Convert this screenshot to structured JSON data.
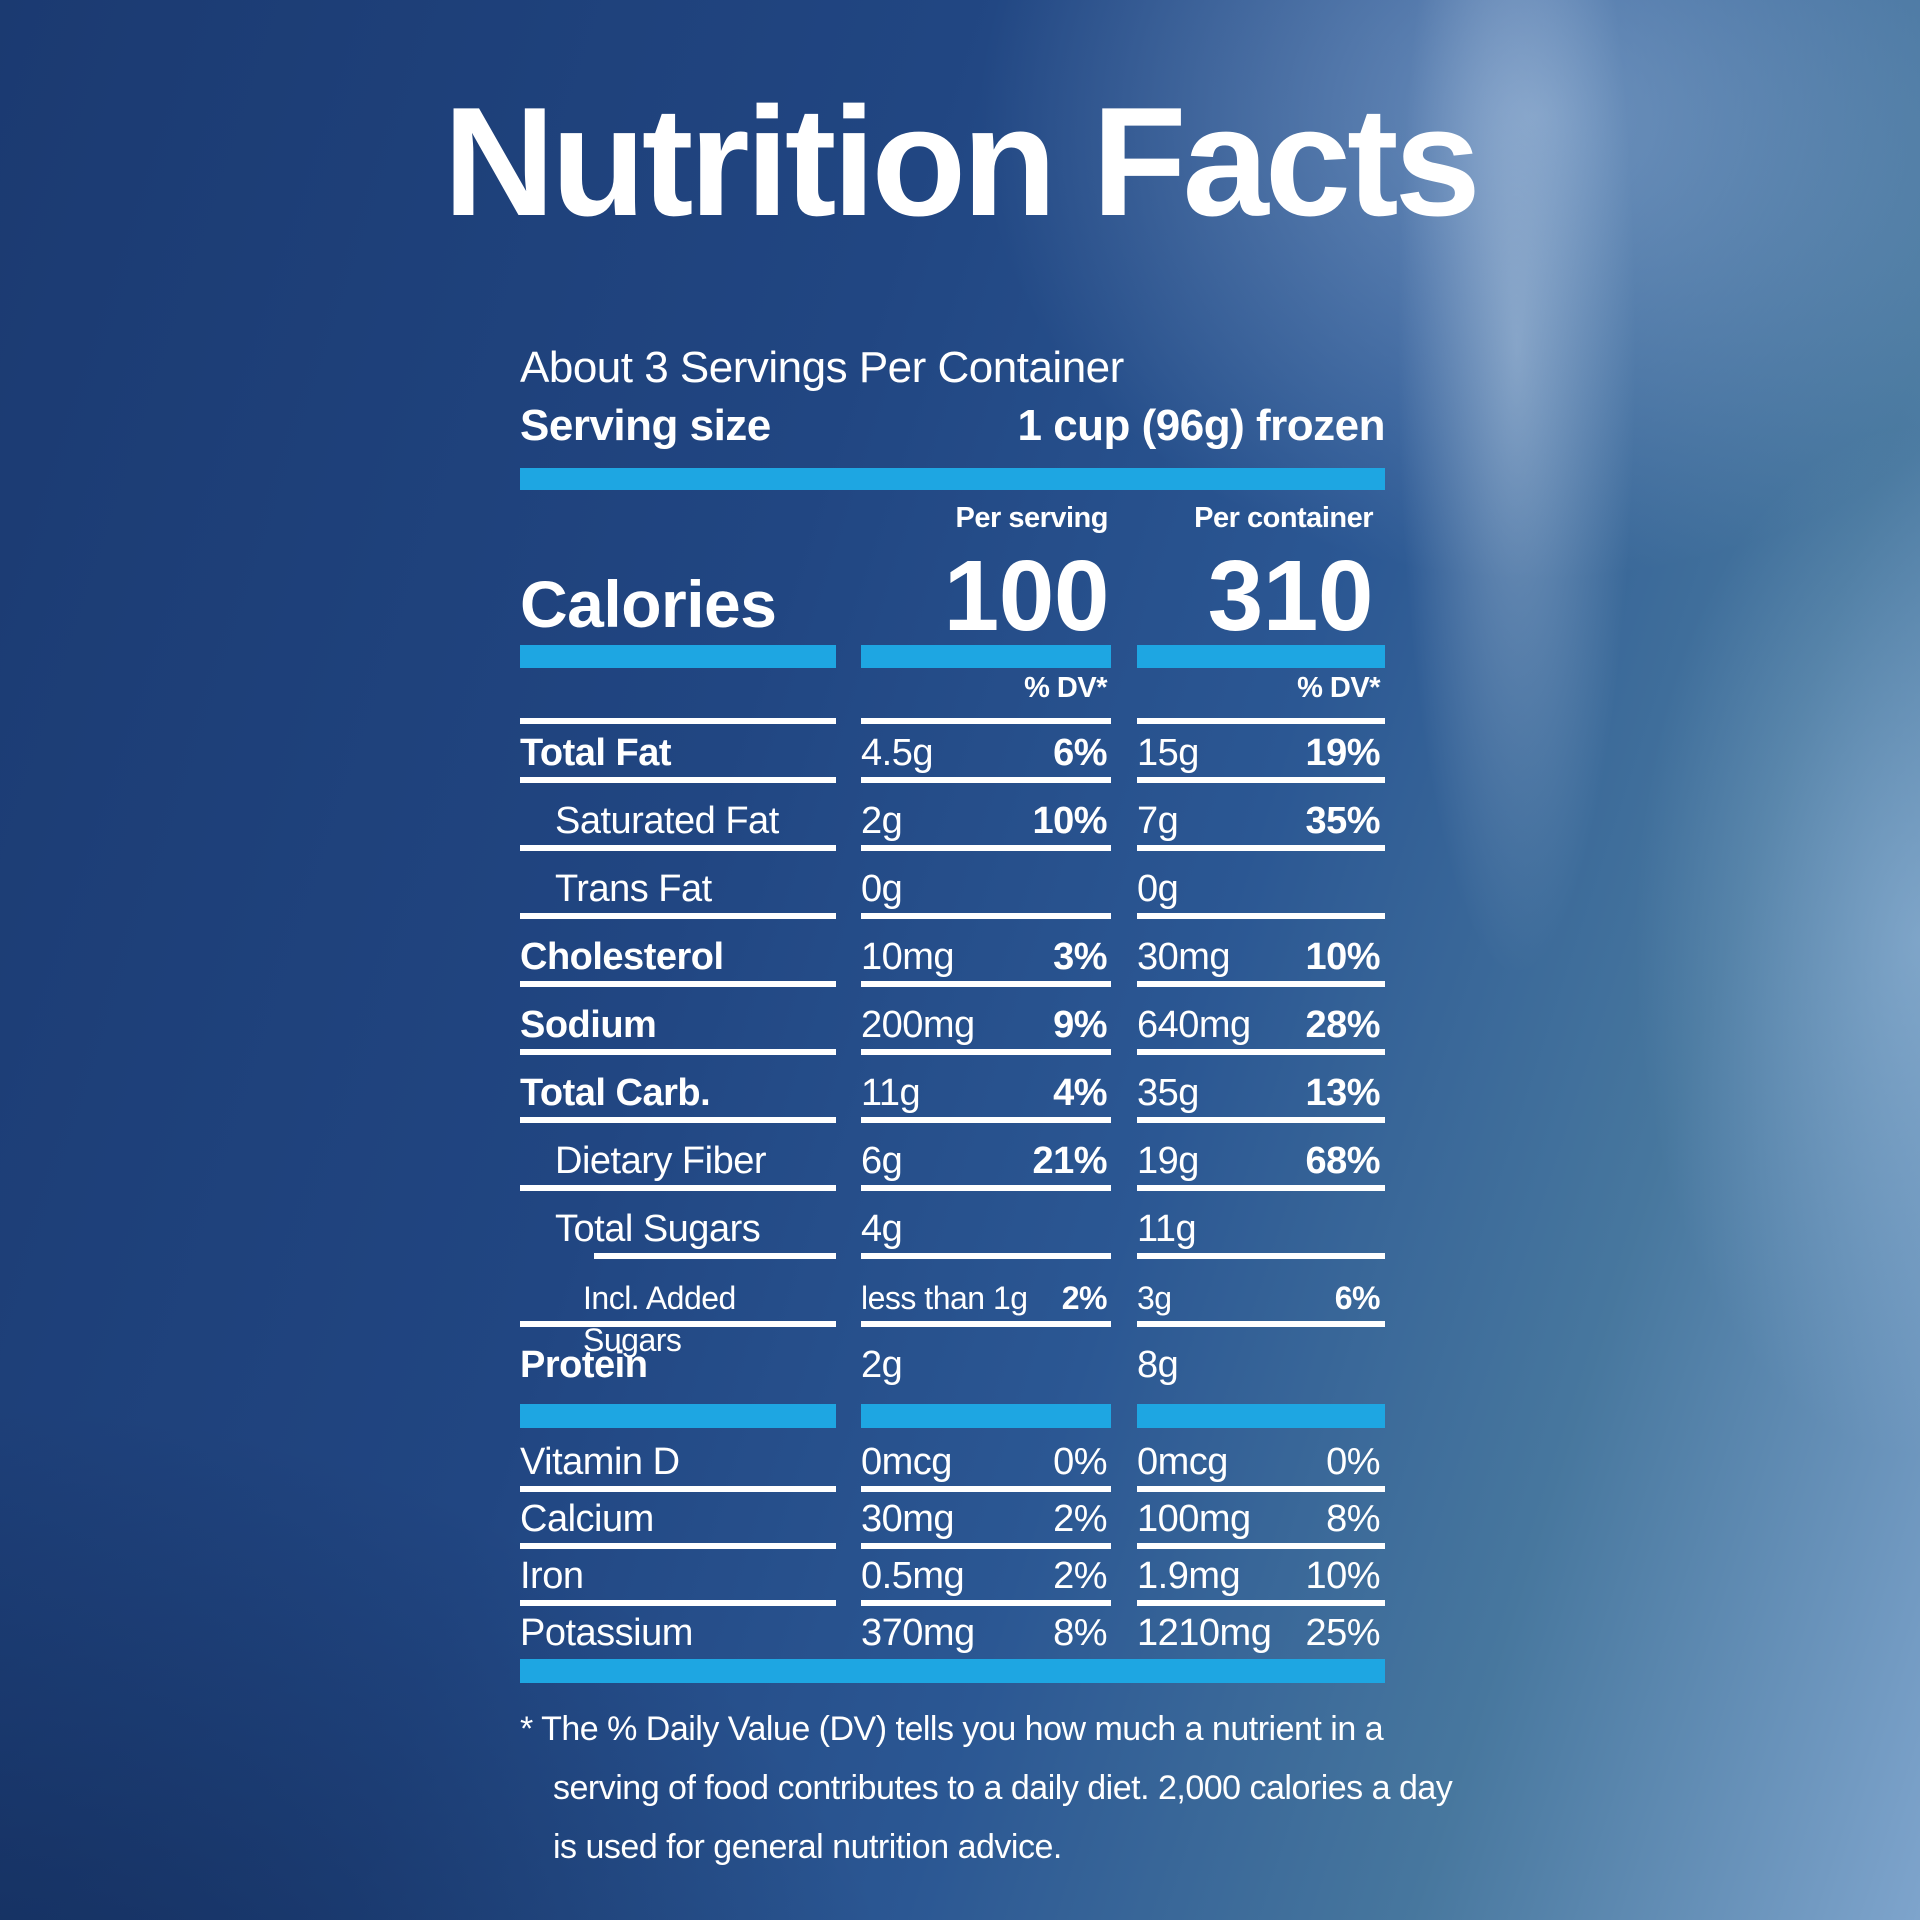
{
  "title": "Nutrition Facts",
  "servings_per_container": "About 3 Servings Per Container",
  "serving_size": {
    "label": "Serving size",
    "value": "1 cup (96g) frozen"
  },
  "columns": {
    "per_serving": "Per serving",
    "per_container": "Per container",
    "dv_header": "% DV*"
  },
  "calories": {
    "label": "Calories",
    "per_serving": "100",
    "per_container": "310"
  },
  "nutrients": [
    {
      "label": "Total Fat",
      "bold": true,
      "indent": 0,
      "ps": "4.5g",
      "ps_dv": "6%",
      "pc": "15g",
      "pc_dv": "19%",
      "line": true
    },
    {
      "label": "Saturated Fat",
      "bold": false,
      "indent": 1,
      "ps": "2g",
      "ps_dv": "10%",
      "pc": "7g",
      "pc_dv": "35%",
      "line": true
    },
    {
      "label": "Trans Fat",
      "bold": false,
      "indent": 1,
      "ps": "0g",
      "ps_dv": "",
      "pc": "0g",
      "pc_dv": "",
      "line": true
    },
    {
      "label": "Cholesterol",
      "bold": true,
      "indent": 0,
      "ps": "10mg",
      "ps_dv": "3%",
      "pc": "30mg",
      "pc_dv": "10%",
      "line": true
    },
    {
      "label": "Sodium",
      "bold": true,
      "indent": 0,
      "ps": "200mg",
      "ps_dv": "9%",
      "pc": "640mg",
      "pc_dv": "28%",
      "line": true
    },
    {
      "label": "Total Carb.",
      "bold": true,
      "indent": 0,
      "ps": "11g",
      "ps_dv": "4%",
      "pc": "35g",
      "pc_dv": "13%",
      "line": true
    },
    {
      "label": "Dietary Fiber",
      "bold": false,
      "indent": 1,
      "ps": "6g",
      "ps_dv": "21%",
      "pc": "19g",
      "pc_dv": "68%",
      "line": true
    },
    {
      "label": "Total Sugars",
      "bold": false,
      "indent": 1,
      "ps": "4g",
      "ps_dv": "",
      "pc": "11g",
      "pc_dv": "",
      "line": true,
      "line_indent": true
    },
    {
      "label": "Incl. Added Sugars",
      "bold": false,
      "indent": 2,
      "small": true,
      "ps": "less than 1g",
      "ps_dv": "2%",
      "pc": "3g",
      "pc_dv": "6%",
      "line": true
    },
    {
      "label": "Protein",
      "bold": true,
      "indent": 0,
      "ps": "2g",
      "ps_dv": "",
      "pc": "8g",
      "pc_dv": "",
      "line": false
    }
  ],
  "vitamins": [
    {
      "label": "Vitamin D",
      "ps": "0mcg",
      "ps_dv": "0%",
      "pc": "0mcg",
      "pc_dv": "0%",
      "line": true
    },
    {
      "label": "Calcium",
      "ps": "30mg",
      "ps_dv": "2%",
      "pc": "100mg",
      "pc_dv": "8%",
      "line": true
    },
    {
      "label": "Iron",
      "ps": "0.5mg",
      "ps_dv": "2%",
      "pc": "1.9mg",
      "pc_dv": "10%",
      "line": true
    },
    {
      "label": "Potassium",
      "ps": "370mg",
      "ps_dv": "8%",
      "pc": "1210mg",
      "pc_dv": "25%",
      "line": false
    }
  ],
  "footnote_lines": [
    "* The % Daily Value (DV) tells you how much a nutrient in a",
    "serving of food contributes to a daily diet. 2,000 calories a day",
    "is used for general nutrition advice."
  ],
  "colors": {
    "accent_bar": "#1EA6E2",
    "text": "#FFFFFF"
  }
}
